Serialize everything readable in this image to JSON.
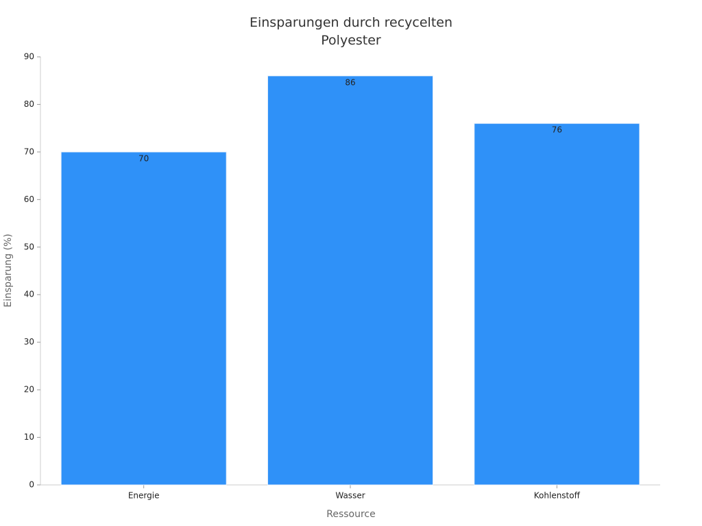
{
  "chart_data": {
    "type": "bar",
    "title": "Einsparungen durch recycelten Polyester",
    "x_label": "Ressource",
    "y_label": "Einsparung (%)",
    "categories": [
      "Energie",
      "Wasser",
      "Kohlenstoff"
    ],
    "values": [
      70,
      86,
      76
    ],
    "color": "#2f91f8",
    "ylim": [
      0,
      90
    ],
    "yticks": [
      0,
      10,
      20,
      30,
      40,
      50,
      60,
      70,
      80,
      90
    ],
    "grid": false
  }
}
